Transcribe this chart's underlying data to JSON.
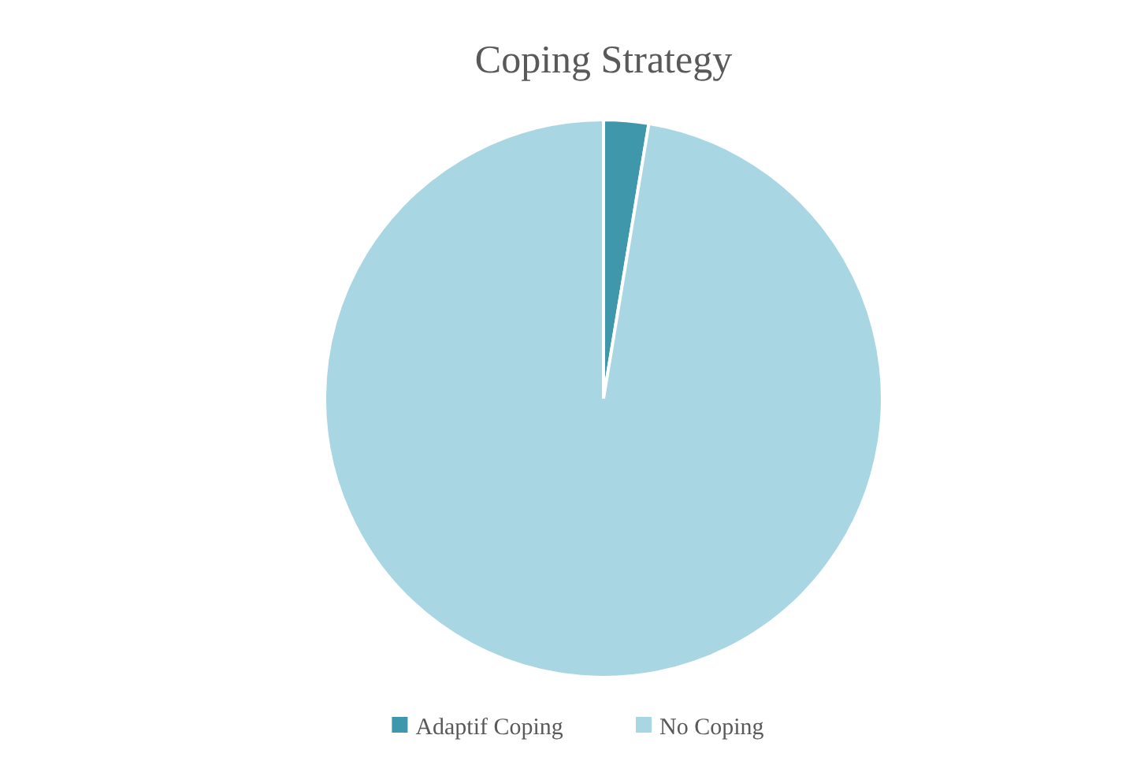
{
  "chart_data": {
    "type": "pie",
    "title": "Coping Strategy",
    "categories": [
      "Adaptif Coping",
      "No Coping"
    ],
    "values": [
      2.6,
      97.4
    ],
    "colors": [
      "#3e97ab",
      "#a8d6e2"
    ],
    "legend": "bottom"
  }
}
